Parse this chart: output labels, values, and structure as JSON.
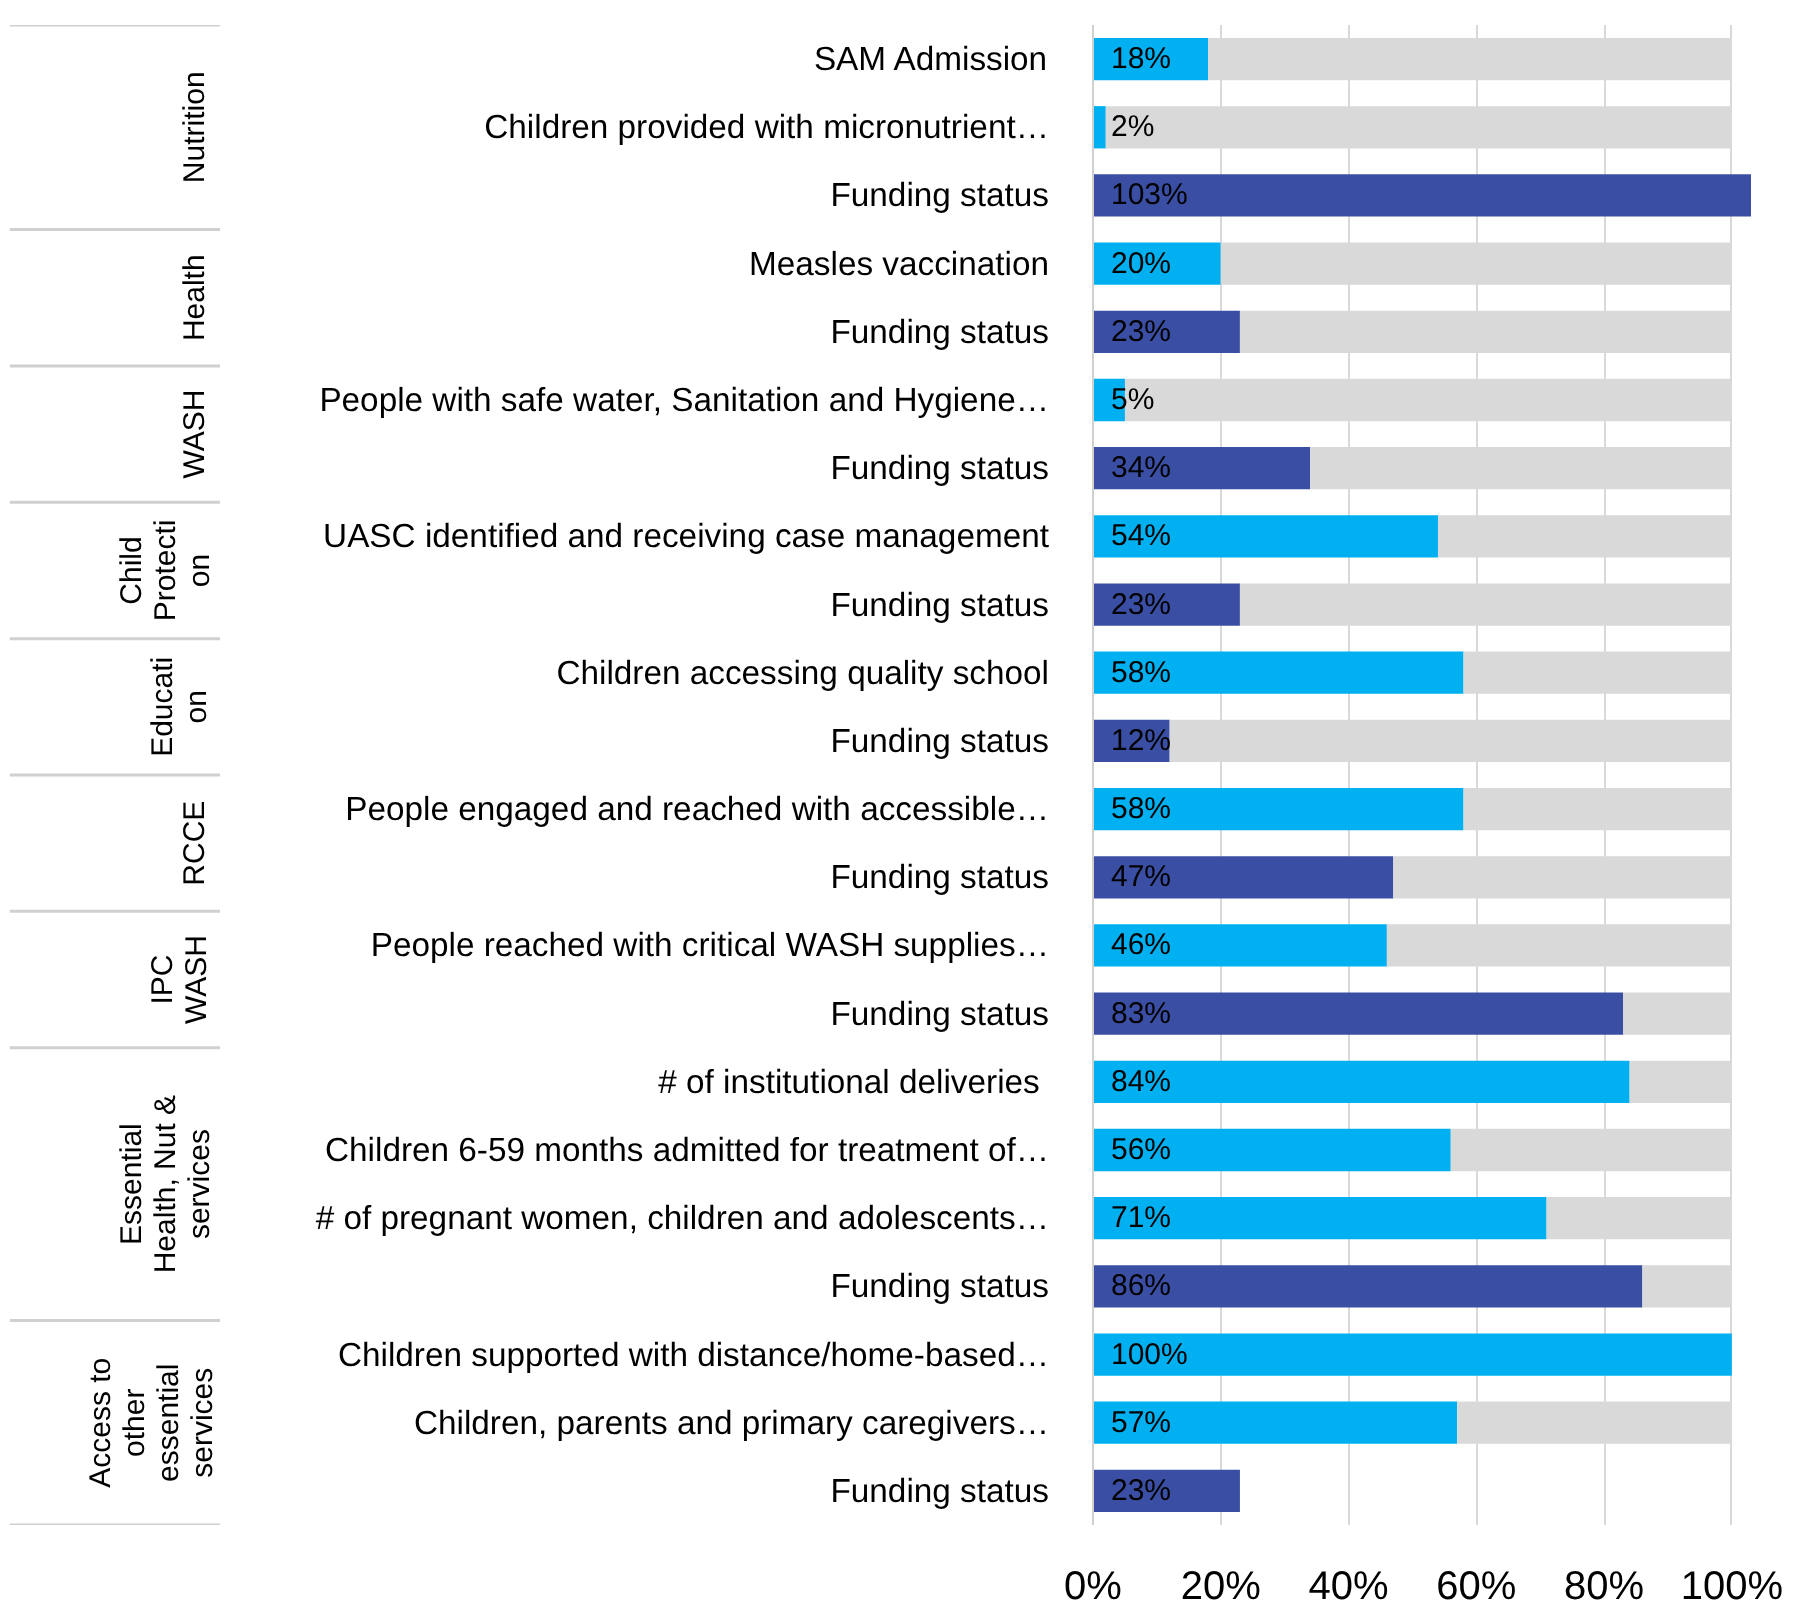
{
  "chart_data": {
    "type": "bar",
    "orientation": "horizontal",
    "stacked": true,
    "categories": [
      "SAM Admission",
      "Children provided with micronutrient…",
      "Funding status",
      "Measles vaccination",
      "Funding status",
      "People with safe water, Sanitation and Hygiene…",
      "Funding status",
      "UASC identified and receiving case management",
      "Funding status",
      "Children accessing quality school",
      "Funding status",
      "People engaged and reached with accessible…",
      "Funding status",
      "People reached with critical WASH supplies…",
      "Funding status",
      "#  of institutional deliveries",
      "Children 6-59 months admitted for treatment of…",
      "# of pregnant women, children and adolescents…",
      "Funding status",
      "Children supported with distance/home-based…",
      "Children, parents and primary caregivers…",
      "Funding status"
    ],
    "series": [
      {
        "values": [
          18,
          2,
          103,
          20,
          23,
          5,
          34,
          54,
          23,
          58,
          12,
          58,
          47,
          46,
          83,
          84,
          56,
          71,
          86,
          100,
          57,
          23
        ],
        "colors": [
          "#00b0f0",
          "#00b0f0",
          "#3a4fa3",
          "#00b0f0",
          "#3a4fa3",
          "#00b0f0",
          "#3a4fa3",
          "#00b0f0",
          "#3a4fa3",
          "#00b0f0",
          "#3a4fa3",
          "#00b0f0",
          "#3a4fa3",
          "#00b0f0",
          "#3a4fa3",
          "#00b0f0",
          "#00b0f0",
          "#00b0f0",
          "#3a4fa3",
          "#00b0f0",
          "#00b0f0",
          "#3a4fa3"
        ],
        "value_labels": [
          "18%",
          "2%",
          "103%",
          "20%",
          "23%",
          "5%",
          "34%",
          "54%",
          "23%",
          "58%",
          "12%",
          "58%",
          "47%",
          "46%",
          "83%",
          "84%",
          "56%",
          "71%",
          "86%",
          "100%",
          "57%",
          "23%"
        ]
      },
      {
        "color": "#d9d9d9",
        "values": [
          82,
          98,
          null,
          80,
          77,
          95,
          66,
          46,
          77,
          42,
          88,
          42,
          53,
          54,
          17,
          16,
          44,
          29,
          14,
          null,
          43,
          null
        ]
      }
    ],
    "xlim": [
      0,
      103
    ],
    "xticks": [
      {
        "value": 0,
        "label": "0%"
      },
      {
        "value": 20,
        "label": "20%"
      },
      {
        "value": 40,
        "label": "40%"
      },
      {
        "value": 60,
        "label": "60%"
      },
      {
        "value": 80,
        "label": "80%"
      },
      {
        "value": 100,
        "label": "100%"
      }
    ],
    "grid": "x",
    "annotations": [
      "Nutrition",
      "Health",
      "WASH",
      "Child\nProtecti\non",
      "Educati\non",
      "RCCE",
      "IPC\nWASH",
      "Essential\nHealth, Nut &\nservices",
      "Access to\nother\nessential\nservices"
    ]
  }
}
